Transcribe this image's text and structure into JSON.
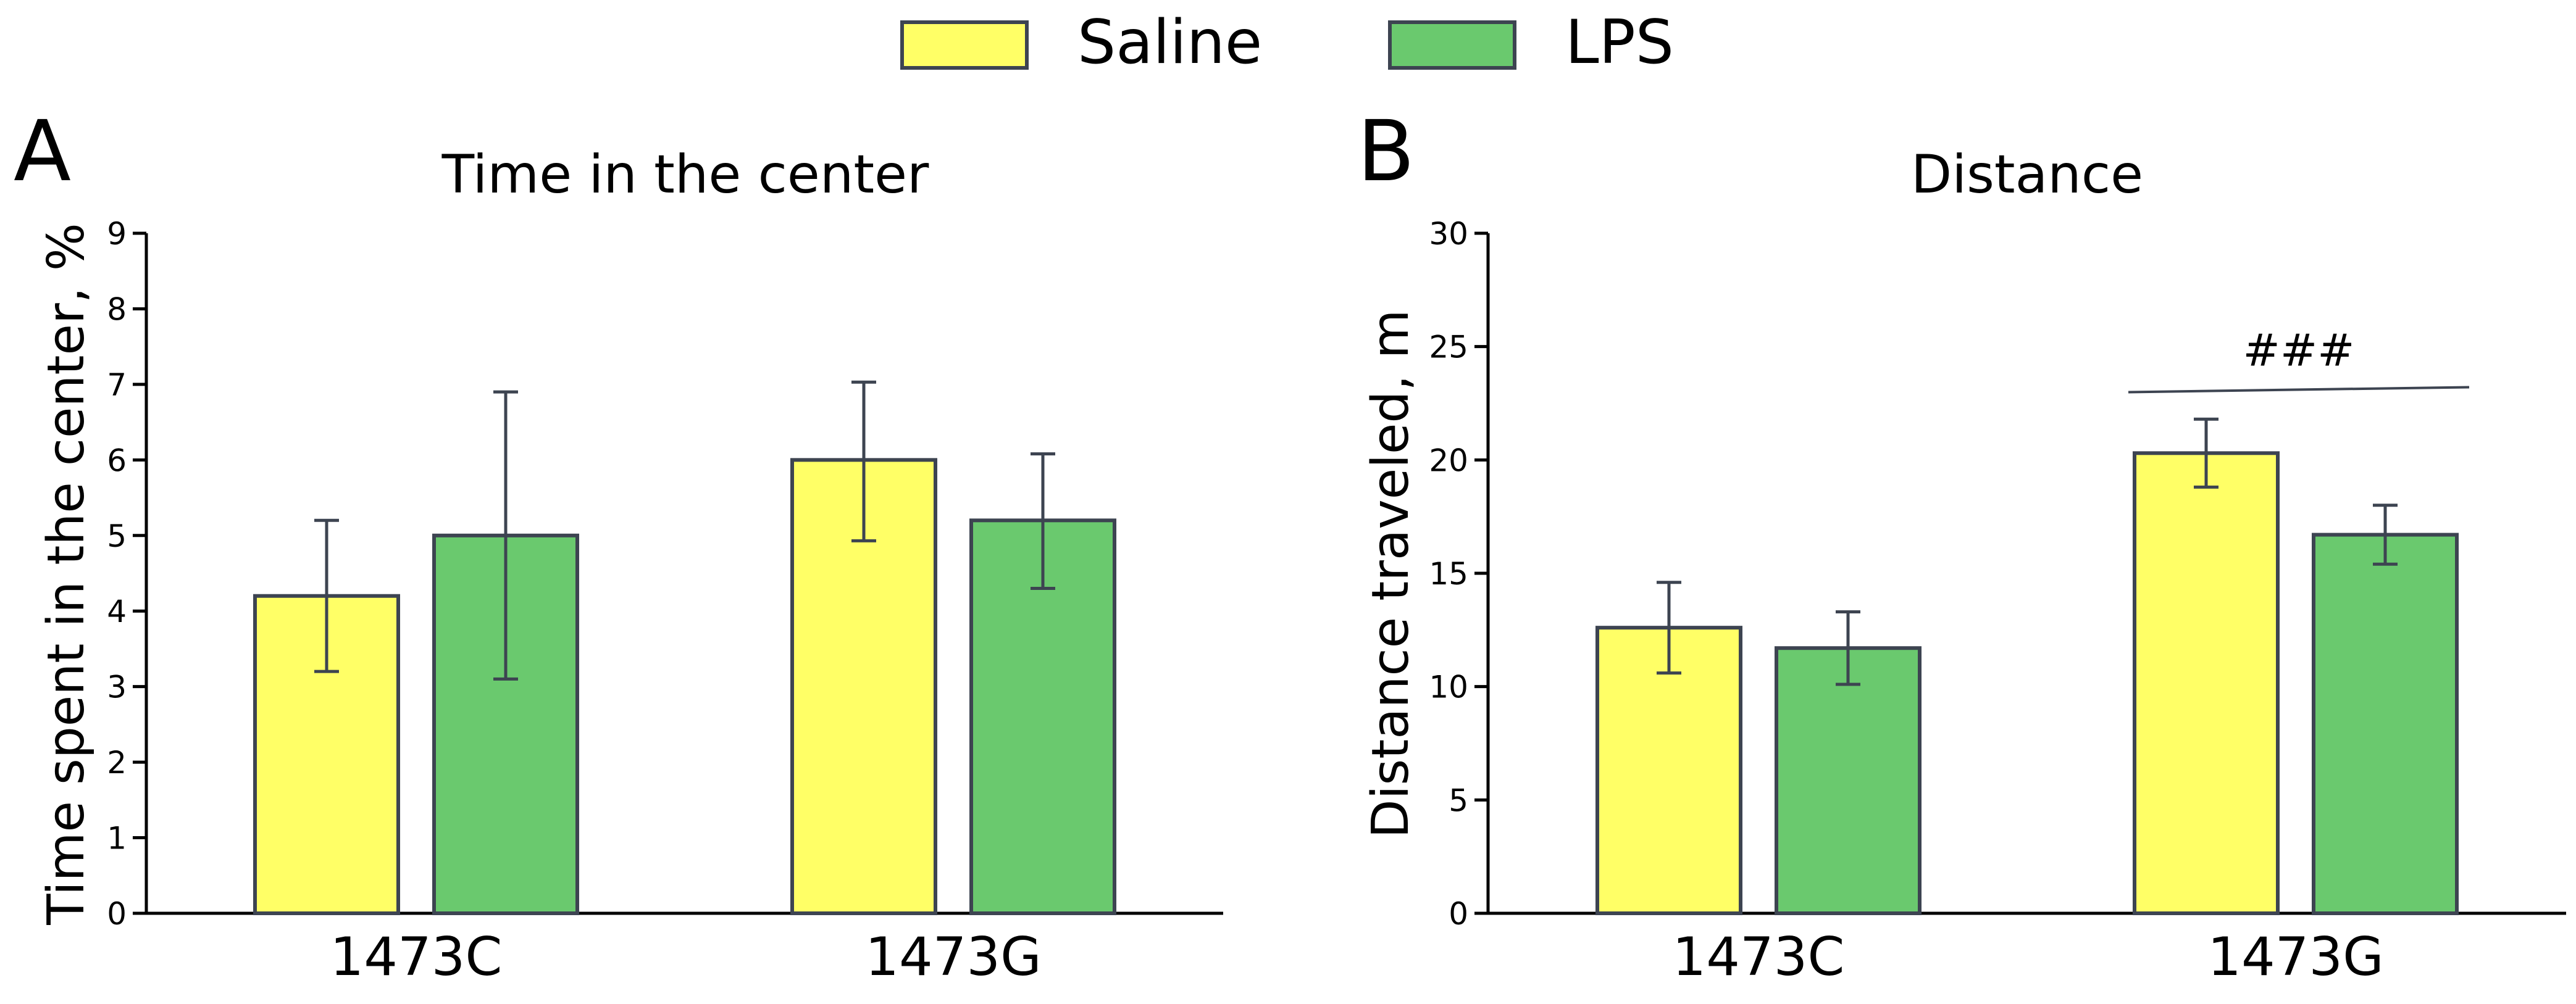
{
  "legend": {
    "placement": "top-center",
    "items": [
      {
        "label": "Saline",
        "color": "#FFFF66"
      },
      {
        "label": "LPS",
        "color": "#6AC96E"
      }
    ]
  },
  "colors": {
    "saline": "#FFFF66",
    "lps": "#6AC96E",
    "edge": "#3D4451",
    "axis": "#000000"
  },
  "chart_data": [
    {
      "panel_label": "A",
      "type": "bar",
      "title": "Time in the center",
      "xlabel": "",
      "ylabel": "Time spent in the center, %",
      "ylim": [
        0,
        9
      ],
      "yticks": [
        0,
        1,
        2,
        3,
        4,
        5,
        6,
        7,
        8,
        9
      ],
      "ytick_labels": [
        "0",
        "1",
        "2",
        "3",
        "4",
        "5",
        "6",
        "7",
        "8",
        "9"
      ],
      "grid": false,
      "categories": [
        "1473C",
        "1473G"
      ],
      "series": [
        {
          "name": "Saline",
          "values": [
            4.2,
            6.0
          ],
          "err_low": [
            3.2,
            4.93
          ],
          "err_high": [
            5.2,
            7.03
          ]
        },
        {
          "name": "LPS",
          "values": [
            5.0,
            5.2
          ],
          "err_low": [
            3.1,
            4.3
          ],
          "err_high": [
            6.9,
            6.08
          ]
        }
      ],
      "annotations": []
    },
    {
      "panel_label": "B",
      "type": "bar",
      "title": "Distance",
      "xlabel": "",
      "ylabel": "Distance traveled, m",
      "ylim": [
        0,
        30
      ],
      "yticks": [
        0,
        5,
        10,
        15,
        20,
        25,
        30
      ],
      "ytick_labels": [
        "0",
        "5",
        "10",
        "15",
        "20",
        "25",
        "30"
      ],
      "grid": false,
      "categories": [
        "1473C",
        "1473G"
      ],
      "series": [
        {
          "name": "Saline",
          "values": [
            12.6,
            20.3
          ],
          "err_low": [
            10.6,
            18.8
          ],
          "err_high": [
            14.6,
            21.8
          ]
        },
        {
          "name": "LPS",
          "values": [
            11.7,
            16.7
          ],
          "err_low": [
            10.1,
            15.4
          ],
          "err_high": [
            13.3,
            18.0
          ]
        }
      ],
      "annotations": [
        {
          "text": "###",
          "category": "1473G",
          "y_line": 23.1,
          "y_text": 24.7
        }
      ]
    }
  ]
}
